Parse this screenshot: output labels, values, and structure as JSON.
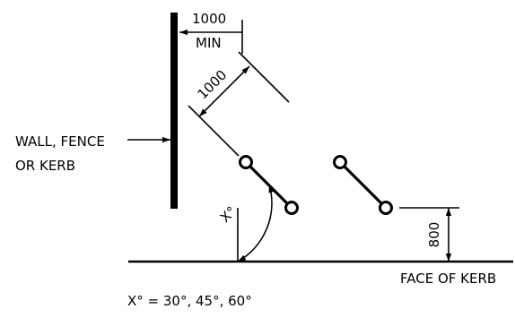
{
  "labels": {
    "dim_top_value": "1000",
    "dim_top_note": "MIN",
    "dim_diag_value": "1000",
    "wall_line1": "WALL, FENCE",
    "wall_line2": "OR KERB",
    "angle_label": "X°",
    "height_value": "800",
    "kerb_face": "FACE OF KERB",
    "angle_values": "X° = 30°, 45°, 60°"
  },
  "colors": {
    "ink": "#000000",
    "background": "#ffffff"
  }
}
